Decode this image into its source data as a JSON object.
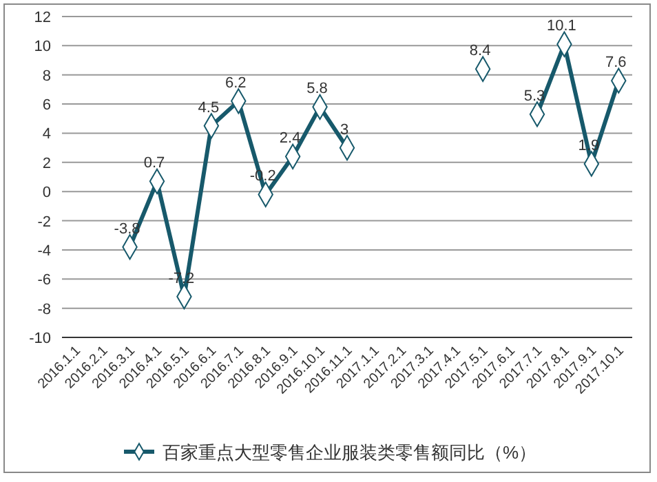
{
  "chart_data": {
    "type": "line",
    "categories": [
      "2016.1.1",
      "2016.2.1",
      "2016.3.1",
      "2016.4.1",
      "2016.5.1",
      "2016.6.1",
      "2016.7.1",
      "2016.8.1",
      "2016.9.1",
      "2016.10.1",
      "2016.11.1",
      "2017.1.1",
      "2017.2.1",
      "2017.3.1",
      "2017.4.1",
      "2017.5.1",
      "2017.6.1",
      "2017.7.1",
      "2017.8.1",
      "2017.9.1",
      "2017.10.1"
    ],
    "series": [
      {
        "name": "百家重点大型零售企业服装类零售额同比（%）",
        "color": "#17596b",
        "values": [
          null,
          null,
          -3.8,
          0.7,
          -7.2,
          4.5,
          6.2,
          -0.2,
          2.4,
          5.8,
          3,
          null,
          null,
          null,
          null,
          8.4,
          null,
          5.3,
          10.1,
          1.9,
          7.6
        ]
      }
    ],
    "ylim": [
      -10,
      12
    ],
    "yticks": [
      -10,
      -8,
      -6,
      -4,
      -2,
      0,
      2,
      4,
      6,
      8,
      10,
      12
    ],
    "grid": "y",
    "legend": "bottom",
    "marker": "diamond",
    "line_style": "solid",
    "data_labels": true
  }
}
